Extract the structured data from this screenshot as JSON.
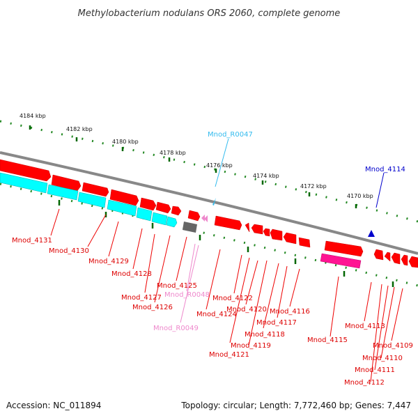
{
  "title": "Methylobacterium nodulans ORS 2060, complete genome",
  "footer": {
    "accession": "Accession: NC_011894",
    "topology": "Topology: circular; Length: 7,772,460 bp; Genes: 7,447"
  },
  "colors": {
    "cds_red": "#ff0000",
    "cds_cyan": "#00ffff",
    "pseudo_magenta": "#ff1493",
    "trna_cyan": "#33bbee",
    "trna_blue": "#0000cc",
    "rrna_pink": "#ee88cc",
    "gray_block": "#666666",
    "backbone": "#888888",
    "tick_green": "#006600"
  },
  "kbp_labels": [
    "4184 kbp",
    "4182 kbp",
    "4180 kbp",
    "4178 kbp",
    "4176 kbp",
    "4174 kbp",
    "4172 kbp",
    "4170 kbp"
  ],
  "gene_labels": [
    "Mnod_R0047",
    "Mnod_4114",
    "Mnod_4131",
    "Mnod_4130",
    "Mnod_4129",
    "Mnod_4128",
    "Mnod_4125",
    "Mnod_4127",
    "Mnod_R0048",
    "Mnod_4126",
    "Mnod_4124",
    "Mnod_4122",
    "Mnod_4120",
    "Mnod_4116",
    "Mnod_4117",
    "Mnod_R0049",
    "Mnod_4118",
    "Mnod_4119",
    "Mnod_4121",
    "Mnod_4115",
    "Mnod_4113",
    "Mnod_4109",
    "Mnod_4110",
    "Mnod_4111",
    "Mnod_4112"
  ]
}
